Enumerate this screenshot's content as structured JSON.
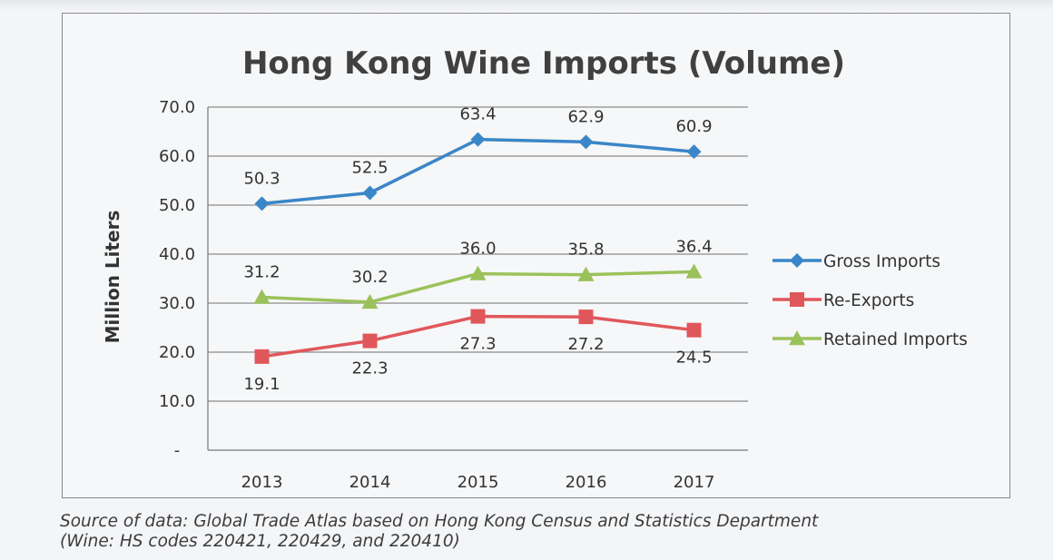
{
  "chart_data": {
    "type": "line",
    "title": "Hong Kong Wine Imports (Volume)",
    "ylabel": "Million Liters",
    "xlabel": "",
    "categories": [
      "2013",
      "2014",
      "2015",
      "2016",
      "2017"
    ],
    "y_ticks": [
      "-",
      "10.0",
      "20.0",
      "30.0",
      "40.0",
      "50.0",
      "60.0",
      "70.0"
    ],
    "ylim": [
      0,
      70
    ],
    "grid": "horizontal",
    "legend_position": "right",
    "series": [
      {
        "name": "Gross Imports",
        "values": [
          50.3,
          52.5,
          63.4,
          62.9,
          60.9
        ],
        "labels": [
          "50.3",
          "52.5",
          "63.4",
          "62.9",
          "60.9"
        ],
        "color": "#3a86c8",
        "marker": "diamond",
        "label_position": "above"
      },
      {
        "name": "Re-Exports",
        "values": [
          19.1,
          22.3,
          27.3,
          27.2,
          24.5
        ],
        "labels": [
          "19.1",
          "22.3",
          "27.3",
          "27.2",
          "24.5"
        ],
        "color": "#e0575b",
        "marker": "square",
        "label_position": "below"
      },
      {
        "name": "Retained Imports",
        "values": [
          31.2,
          30.2,
          36.0,
          35.8,
          36.4
        ],
        "labels": [
          "31.2",
          "30.2",
          "36.0",
          "35.8",
          "36.4"
        ],
        "color": "#9bc25a",
        "marker": "triangle",
        "label_position": "above"
      }
    ]
  },
  "source": {
    "line1": "Source of data: Global Trade Atlas based on Hong Kong Census and Statistics Department",
    "line2": "(Wine: HS codes 220421, 220429, and 220410)"
  }
}
